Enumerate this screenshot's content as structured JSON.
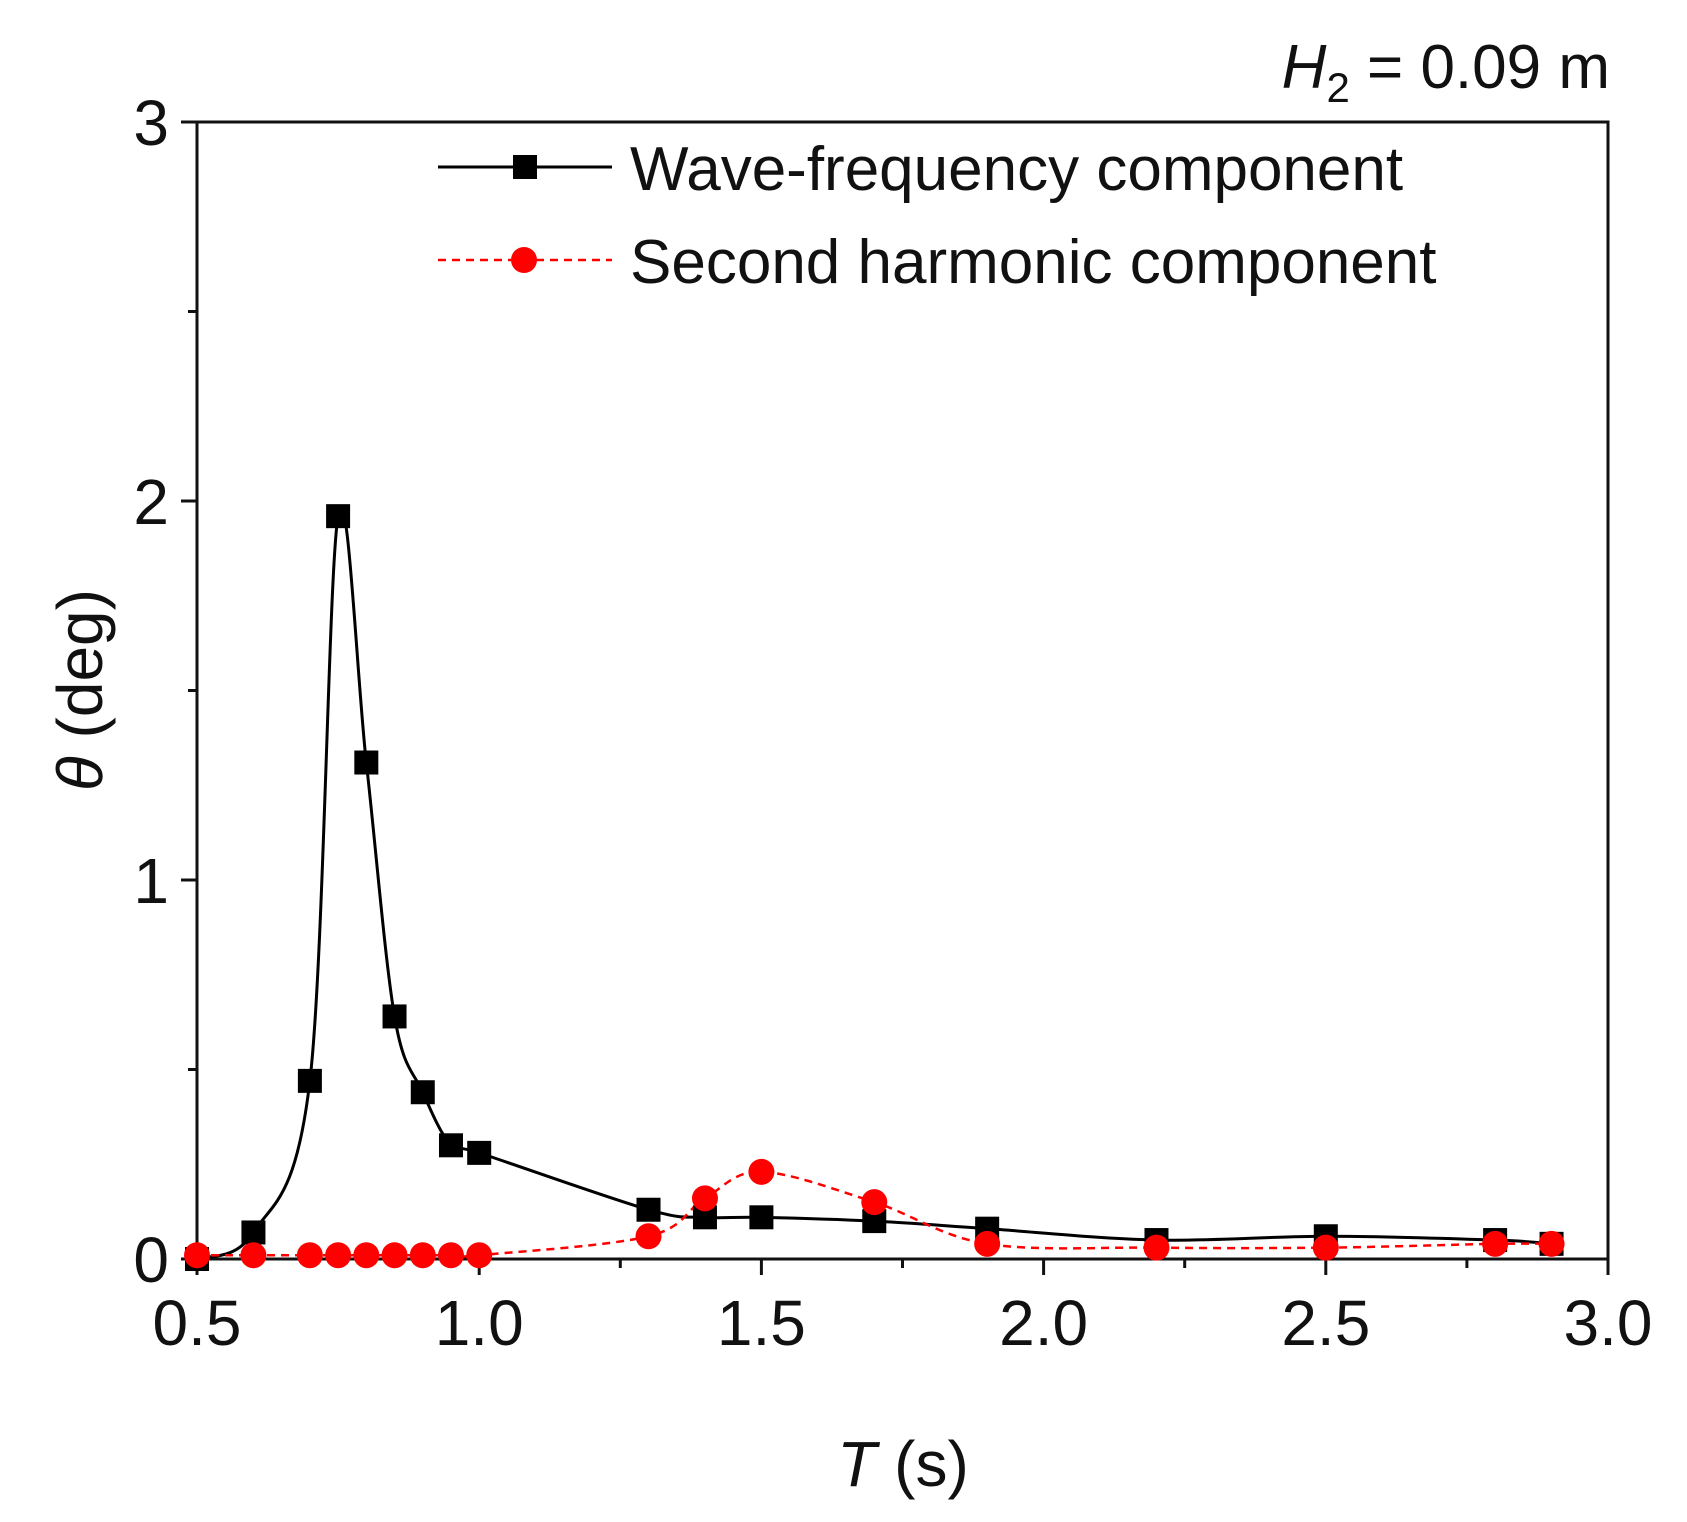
{
  "chart_data": {
    "type": "line",
    "annotation": {
      "symbol": "H",
      "subscript": "2",
      "rest": " = 0.09 m"
    },
    "xlabel": {
      "symbol": "T",
      "unit": " (s)"
    },
    "ylabel": {
      "symbol": "θ",
      "unit": " (deg)"
    },
    "xlim": [
      0.5,
      3.0
    ],
    "ylim": [
      0,
      3
    ],
    "x_ticks": [
      0.5,
      1.0,
      1.5,
      2.0,
      2.5,
      3.0
    ],
    "x_tick_labels": [
      "0.5",
      "1.0",
      "1.5",
      "2.0",
      "2.5",
      "3.0"
    ],
    "y_ticks": [
      0,
      1,
      2,
      3
    ],
    "y_tick_labels": [
      "0",
      "1",
      "2",
      "3"
    ],
    "legend_position": "top-right",
    "series": [
      {
        "name": "Wave-frequency component",
        "color": "#000000",
        "marker": "square",
        "line_style": "solid",
        "x": [
          0.5,
          0.6,
          0.7,
          0.75,
          0.8,
          0.85,
          0.9,
          0.95,
          1.0,
          1.3,
          1.4,
          1.5,
          1.7,
          1.9,
          2.2,
          2.5,
          2.8,
          2.9
        ],
        "y": [
          0.0,
          0.07,
          0.47,
          1.96,
          1.31,
          0.64,
          0.44,
          0.3,
          0.28,
          0.13,
          0.11,
          0.11,
          0.1,
          0.08,
          0.05,
          0.06,
          0.05,
          0.04
        ]
      },
      {
        "name": "Second harmonic component",
        "color": "#ff0000",
        "marker": "circle",
        "line_style": "dashed",
        "x": [
          0.5,
          0.6,
          0.7,
          0.75,
          0.8,
          0.85,
          0.9,
          0.95,
          1.0,
          1.3,
          1.4,
          1.5,
          1.7,
          1.9,
          2.2,
          2.5,
          2.8,
          2.9
        ],
        "y": [
          0.01,
          0.01,
          0.01,
          0.01,
          0.01,
          0.01,
          0.01,
          0.01,
          0.01,
          0.06,
          0.16,
          0.23,
          0.15,
          0.04,
          0.03,
          0.03,
          0.04,
          0.04
        ]
      }
    ]
  }
}
